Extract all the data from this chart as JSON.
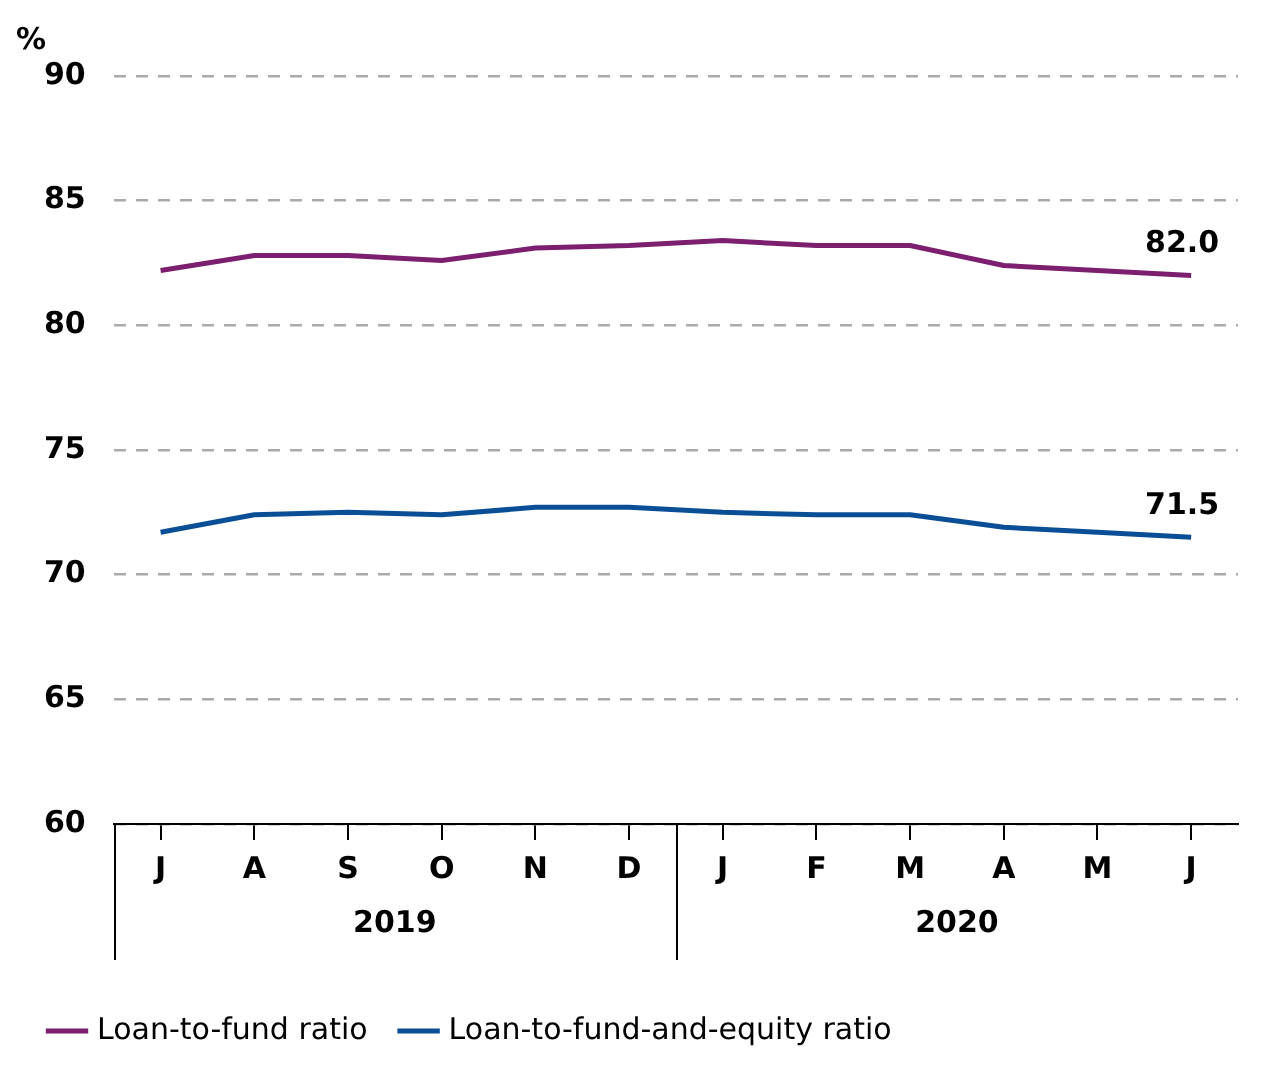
{
  "chart_data": {
    "type": "line",
    "ylabel": "%",
    "categories": [
      "J",
      "A",
      "S",
      "O",
      "N",
      "D",
      "J",
      "F",
      "M",
      "A",
      "M",
      "J"
    ],
    "annotations": [
      "2019",
      "2020"
    ],
    "series": [
      {
        "name": "Loan-to-fund ratio",
        "color": "#7b1f6e",
        "values": [
          82.2,
          82.8,
          82.8,
          82.6,
          83.1,
          83.2,
          83.4,
          83.2,
          83.2,
          82.4,
          82.2,
          82.0
        ],
        "value_labels": [
          null,
          null,
          null,
          null,
          null,
          null,
          null,
          null,
          null,
          null,
          null,
          "82.0"
        ]
      },
      {
        "name": "Loan-to-fund-and-equity ratio",
        "color": "#0a4f96",
        "values": [
          71.7,
          72.4,
          72.5,
          72.4,
          72.7,
          72.7,
          72.5,
          72.4,
          72.4,
          71.9,
          71.7,
          71.5
        ],
        "value_labels": [
          null,
          null,
          null,
          null,
          null,
          null,
          null,
          null,
          null,
          null,
          null,
          "71.5"
        ]
      }
    ],
    "ylim": [
      60,
      90
    ],
    "yticks": [
      60,
      65,
      70,
      75,
      80,
      85,
      90
    ],
    "grid": "y",
    "legend": "bottom",
    "marker": "none",
    "line_style": "solid"
  }
}
